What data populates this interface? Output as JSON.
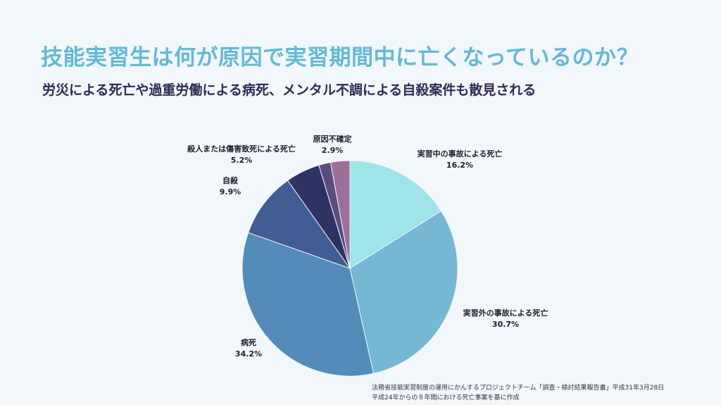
{
  "header": {
    "title": "技能実習生は何が原因で実習期間中に亡くなっているのか？",
    "subtitle": "労災による死亡や過重労働による病死、メンタル不調による自殺案件も散見される"
  },
  "chart_data": {
    "type": "pie",
    "start_angle_deg": 0,
    "direction": "clockwise",
    "slices": [
      {
        "label": "実習中の事故による死亡",
        "value": 16.2,
        "pct_text": "16.2%",
        "color": "#9ee4e8"
      },
      {
        "label": "実習外の事故による死亡",
        "value": 30.7,
        "pct_text": "30.7%",
        "color": "#76b7d3"
      },
      {
        "label": "病死",
        "value": 34.2,
        "pct_text": "34.2%",
        "color": "#558bb8"
      },
      {
        "label": "自殺",
        "value": 9.9,
        "pct_text": "9.9%",
        "color": "#435c93"
      },
      {
        "label": "殺人または傷害致死による死亡",
        "value": 5.2,
        "pct_text": "5.2%",
        "color": "#2f3363"
      },
      {
        "label": "",
        "value": 1.8,
        "pct_text": "",
        "color": "#5b4c7e"
      },
      {
        "label": "原因不確定",
        "value": 2.9,
        "pct_text": "2.9%",
        "color": "#9c6f9a"
      }
    ]
  },
  "source": {
    "line1": "法務省技能実習制度の運用にかんするプロジェクトチーム「調査・検討結果報告書」平成31年3月28日",
    "line2": "平成24年からの８年間における死亡事案を基に作成"
  }
}
